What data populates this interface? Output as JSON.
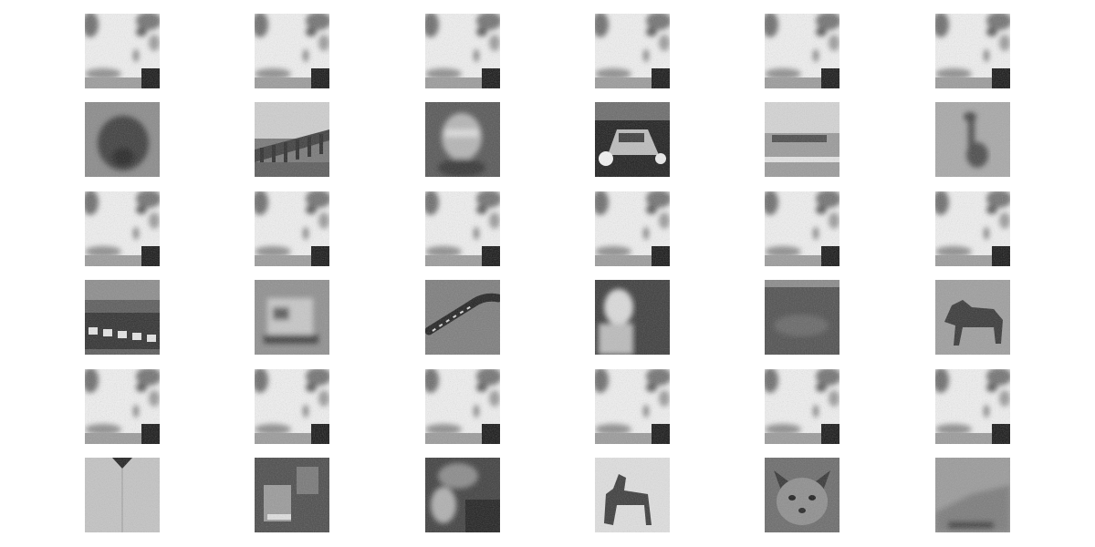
{
  "figure": {
    "rows": 6,
    "cols": 6,
    "grid": false,
    "row_kinds": [
      "template",
      "sample",
      "template",
      "sample",
      "template",
      "sample"
    ]
  },
  "template_pattern": "noisy-bright-mask",
  "samples": [
    [
      "dog-face",
      "bridge",
      "blurry-figure",
      "truck-lights",
      "field-vehicle",
      "giraffe"
    ],
    [
      "building-windows",
      "truck",
      "lizard",
      "person-portrait",
      "blurry-dark",
      "horse"
    ],
    [
      "person-sweater",
      "machinery",
      "cat-on-car",
      "dog-standing",
      "kitten",
      "sky-horizon"
    ]
  ]
}
